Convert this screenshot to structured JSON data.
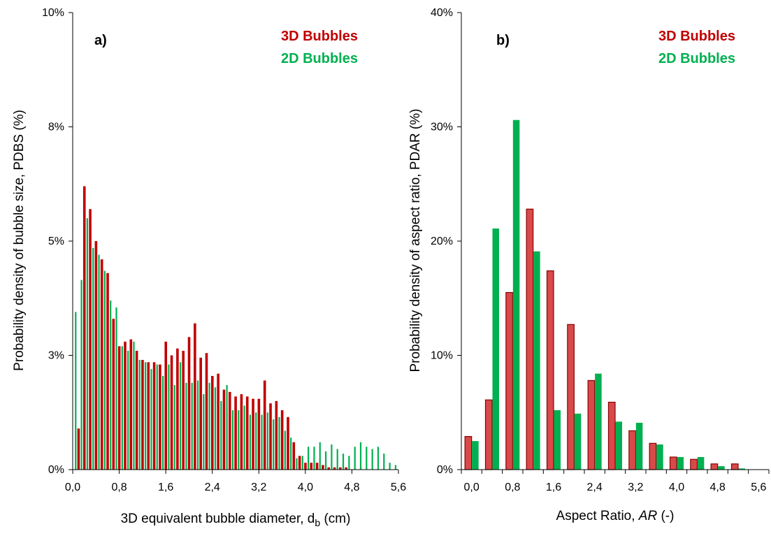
{
  "colors": {
    "series_3d": "#c00000",
    "series_3d_edge": "#8b0000",
    "series_3d_fill_b": "#d84a4a",
    "series_2d": "#00b050",
    "axis": "#000000"
  },
  "chart_data": [
    {
      "type": "bar",
      "panel_label": "a)",
      "title": "",
      "xlabel_main": "3D equivalent bubble diameter, d",
      "xlabel_sub": "b",
      "xlabel_unit": " (cm)",
      "ylabel": "Probability density of bubble size, PDBS (%)",
      "xlim": [
        0,
        5.6
      ],
      "ylim": [
        0,
        10
      ],
      "x_ticks": [
        "0,0",
        "0,8",
        "1,6",
        "2,4",
        "3,2",
        "4,0",
        "4,8",
        "5,6"
      ],
      "x_tick_values": [
        0,
        0.8,
        1.6,
        2.4,
        3.2,
        4.0,
        4.8,
        5.6
      ],
      "y_ticks": [
        "0%",
        "3%",
        "5%",
        "8%",
        "10%"
      ],
      "y_tick_values": [
        0,
        2.5,
        5,
        7.5,
        10
      ],
      "legend_position": "top-right",
      "series": [
        {
          "name": "3D Bubbles",
          "x": [
            0.1,
            0.2,
            0.3,
            0.4,
            0.5,
            0.6,
            0.7,
            0.8,
            0.9,
            1.0,
            1.1,
            1.2,
            1.3,
            1.4,
            1.5,
            1.6,
            1.7,
            1.8,
            1.9,
            2.0,
            2.1,
            2.2,
            2.3,
            2.4,
            2.5,
            2.6,
            2.7,
            2.8,
            2.9,
            3.0,
            3.1,
            3.2,
            3.3,
            3.4,
            3.5,
            3.6,
            3.7,
            3.8,
            3.9,
            4.0,
            4.1,
            4.2,
            4.3,
            4.4,
            4.5,
            4.6,
            4.7,
            4.8,
            4.9,
            5.0,
            5.1,
            5.2
          ],
          "values": [
            0.9,
            6.2,
            5.7,
            5.0,
            4.6,
            4.3,
            3.3,
            2.7,
            2.8,
            2.85,
            2.6,
            2.4,
            2.35,
            2.35,
            2.3,
            2.8,
            2.5,
            2.65,
            2.6,
            2.9,
            3.2,
            2.45,
            2.55,
            2.05,
            2.1,
            1.75,
            1.7,
            1.6,
            1.65,
            1.6,
            1.55,
            1.55,
            1.95,
            1.45,
            1.5,
            1.3,
            1.15,
            0.6,
            0.3,
            0.15,
            0.15,
            0.15,
            0.1,
            0.05,
            0.05,
            0.05,
            0.05,
            0,
            0,
            0,
            0,
            0
          ]
        },
        {
          "name": "2D Bubbles",
          "x": [
            0.05,
            0.15,
            0.25,
            0.35,
            0.45,
            0.55,
            0.65,
            0.75,
            0.85,
            0.95,
            1.05,
            1.15,
            1.25,
            1.35,
            1.45,
            1.55,
            1.65,
            1.75,
            1.85,
            1.95,
            2.05,
            2.15,
            2.25,
            2.35,
            2.45,
            2.55,
            2.65,
            2.75,
            2.85,
            2.95,
            3.05,
            3.15,
            3.25,
            3.35,
            3.45,
            3.55,
            3.65,
            3.75,
            3.85,
            3.95,
            4.05,
            4.15,
            4.25,
            4.35,
            4.45,
            4.55,
            4.65,
            4.75,
            4.85,
            4.95,
            5.05,
            5.15,
            5.25,
            5.35,
            5.45,
            5.55
          ],
          "values": [
            3.45,
            4.15,
            5.5,
            4.85,
            4.7,
            4.35,
            3.7,
            3.55,
            2.7,
            2.6,
            2.8,
            2.4,
            2.35,
            2.2,
            2.3,
            2.05,
            2.3,
            1.85,
            2.35,
            1.9,
            1.9,
            1.95,
            1.65,
            1.9,
            1.8,
            1.5,
            1.85,
            1.3,
            1.3,
            1.4,
            1.2,
            1.25,
            1.2,
            1.25,
            1.1,
            1.15,
            0.85,
            0.7,
            0.25,
            0.3,
            0.5,
            0.5,
            0.6,
            0.4,
            0.55,
            0.45,
            0.35,
            0.3,
            0.5,
            0.6,
            0.5,
            0.45,
            0.5,
            0.35,
            0.15,
            0.1
          ]
        }
      ]
    },
    {
      "type": "bar",
      "panel_label": "b)",
      "title": "",
      "xlabel_main": "Aspect Ratio, ",
      "xlabel_italic": "AR",
      "xlabel_unit": " (-)",
      "ylabel": "Probability density of aspect ratio, PDAR (%)",
      "xlim": [
        -0.2,
        5.8
      ],
      "ylim": [
        0,
        40
      ],
      "x_ticks": [
        "0,0",
        "0,8",
        "1,6",
        "2,4",
        "3,2",
        "4,0",
        "4,8",
        "5,6"
      ],
      "x_tick_values": [
        0,
        0.8,
        1.6,
        2.4,
        3.2,
        4.0,
        4.8,
        5.6
      ],
      "y_ticks": [
        "0%",
        "10%",
        "20%",
        "30%",
        "40%"
      ],
      "y_tick_values": [
        0,
        10,
        20,
        30,
        40
      ],
      "legend_position": "top-right",
      "series": [
        {
          "name": "3D Bubbles",
          "x": [
            0.0,
            0.4,
            0.8,
            1.2,
            1.6,
            2.0,
            2.4,
            2.8,
            3.2,
            3.6,
            4.0,
            4.4,
            4.8,
            5.2
          ],
          "values": [
            2.9,
            6.1,
            15.5,
            22.8,
            17.4,
            12.7,
            7.8,
            5.9,
            3.4,
            2.3,
            1.1,
            0.9,
            0.5,
            0.5
          ]
        },
        {
          "name": "2D Bubbles",
          "x": [
            0.0,
            0.4,
            0.8,
            1.2,
            1.6,
            2.0,
            2.4,
            2.8,
            3.2,
            3.6,
            4.0,
            4.4,
            4.8,
            5.2
          ],
          "values": [
            2.5,
            21.1,
            30.6,
            19.1,
            5.2,
            4.9,
            8.4,
            4.2,
            4.1,
            2.2,
            1.1,
            1.1,
            0.3,
            0.1
          ]
        }
      ]
    }
  ]
}
